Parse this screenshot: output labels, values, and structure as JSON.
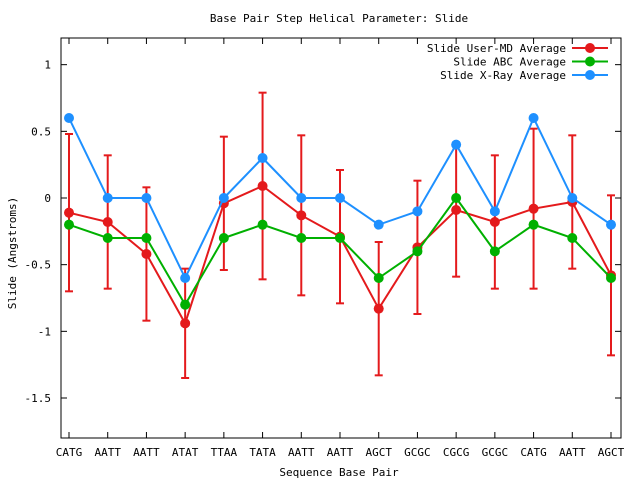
{
  "chart_data": {
    "type": "line",
    "title": "Base Pair Step Helical Parameter: Slide",
    "xlabel": "Sequence Base Pair",
    "ylabel": "Slide (Angstroms)",
    "categories": [
      "CATG",
      "AATT",
      "AATT",
      "ATAT",
      "TTAA",
      "TATA",
      "AATT",
      "AATT",
      "AGCT",
      "GCGC",
      "CGCG",
      "GCGC",
      "CATG",
      "AATT",
      "AGCT"
    ],
    "ylim": [
      -1.8,
      1.2
    ],
    "yticks": [
      1,
      0.5,
      0,
      -0.5,
      -1,
      -1.5
    ],
    "ytick_labels": [
      "1",
      "0.5",
      "0",
      "-0.5",
      "-1",
      "-1.5"
    ],
    "legend_position": "top-right",
    "series": [
      {
        "name": "Slide User-MD Average",
        "color": "#e41a1c",
        "values": [
          -0.11,
          -0.18,
          -0.42,
          -0.94,
          -0.04,
          0.09,
          -0.13,
          -0.29,
          -0.83,
          -0.37,
          -0.09,
          -0.18,
          -0.08,
          -0.03,
          -0.58
        ],
        "error": [
          0.59,
          0.5,
          0.5,
          0.41,
          0.5,
          0.7,
          0.6,
          0.5,
          0.5,
          0.5,
          0.5,
          0.5,
          0.6,
          0.5,
          0.6
        ]
      },
      {
        "name": "Slide ABC Average",
        "color": "#00b000",
        "values": [
          -0.2,
          -0.3,
          -0.3,
          -0.8,
          -0.3,
          -0.2,
          -0.3,
          -0.3,
          -0.6,
          -0.4,
          0.0,
          -0.4,
          -0.2,
          -0.3,
          -0.6
        ]
      },
      {
        "name": "Slide X-Ray Average",
        "color": "#1e90ff",
        "values": [
          0.6,
          0.0,
          0.0,
          -0.6,
          0.0,
          0.3,
          0.0,
          0.0,
          -0.2,
          -0.1,
          0.4,
          -0.1,
          0.6,
          0.0,
          -0.2
        ]
      }
    ]
  }
}
